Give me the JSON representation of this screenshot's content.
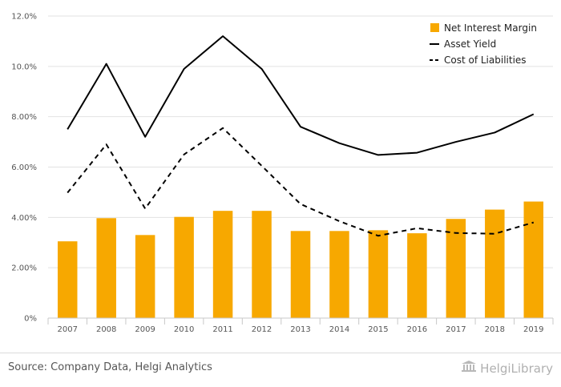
{
  "colors": {
    "bar": "#F7A800",
    "line": "#000000",
    "grid": "#e2e2e2",
    "axis": "#c8c8c8"
  },
  "chart_data": {
    "type": "bar",
    "categories": [
      "2007",
      "2008",
      "2009",
      "2010",
      "2011",
      "2012",
      "2013",
      "2014",
      "2015",
      "2016",
      "2017",
      "2018",
      "2019"
    ],
    "series": [
      {
        "name": "Net Interest Margin",
        "type": "bar",
        "values": [
          3.05,
          3.97,
          3.3,
          4.02,
          4.26,
          4.26,
          3.46,
          3.46,
          3.49,
          3.37,
          3.94,
          4.31,
          4.63
        ]
      },
      {
        "name": "Asset Yield",
        "type": "line",
        "style": "solid",
        "values": [
          7.5,
          10.1,
          7.2,
          9.9,
          11.2,
          9.9,
          7.6,
          6.95,
          6.48,
          6.57,
          7.0,
          7.37,
          8.1
        ]
      },
      {
        "name": "Cost of Liabilities",
        "type": "line",
        "style": "dashed",
        "values": [
          4.98,
          6.9,
          4.35,
          6.5,
          7.55,
          6.05,
          4.53,
          3.85,
          3.27,
          3.57,
          3.38,
          3.35,
          3.8
        ]
      }
    ],
    "y_ticks": [
      "0%",
      "2.00%",
      "4.00%",
      "6.00%",
      "8.00%",
      "10.0%",
      "12.0%"
    ],
    "ylim": [
      0,
      12
    ],
    "grid": true,
    "legend_position": "top-right"
  },
  "footer": {
    "source": "Source: Company Data, Helgi Analytics",
    "logo_text": "HelgiLibrary"
  }
}
